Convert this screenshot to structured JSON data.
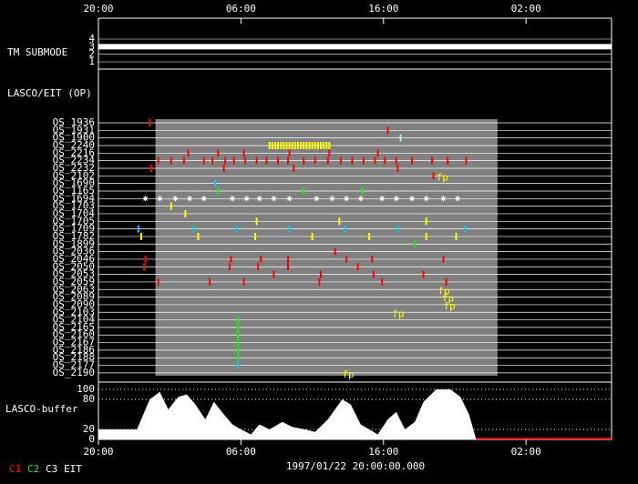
{
  "chart_data": {
    "type": "timeline",
    "xlim": [
      0,
      36
    ],
    "xticks": [
      {
        "value": 0,
        "label": "20:00"
      },
      {
        "value": 10,
        "label": "06:00"
      },
      {
        "value": 20,
        "label": "16:00"
      },
      {
        "value": 30,
        "label": "02:00"
      }
    ],
    "submode": {
      "label": "TM SUBMODE",
      "yticks": [
        4,
        3,
        2,
        1
      ],
      "value": 3,
      "color": "#ffffff"
    },
    "ops_label": "LASCO/EIT (OP)",
    "highlight_range": [
      4,
      28
    ],
    "rows": [
      {
        "name": "OS_1936",
        "color": "#ff0000",
        "times": [
          3.6
        ]
      },
      {
        "name": "OS_1931",
        "color": "#ff0000",
        "times": [
          20.3
        ]
      },
      {
        "name": "OS_1900",
        "color": "#aaeeff",
        "times": [
          21.2
        ]
      },
      {
        "name": "OS_2240",
        "color": "#ffff00",
        "times": [
          12.0,
          12.2,
          12.4,
          12.6,
          12.8,
          13.0,
          13.2,
          13.4,
          13.6,
          13.8,
          14.0,
          14.2,
          14.4,
          14.6,
          14.8,
          15.0,
          15.2,
          15.4,
          15.6,
          15.8,
          16.0,
          16.2
        ]
      },
      {
        "name": "OS_2216",
        "color": "#ff0000",
        "times": [
          6.3,
          8.4,
          10.2,
          13.4,
          16.2,
          19.6
        ]
      },
      {
        "name": "OS_2234",
        "color": "#ff0000",
        "times": [
          4.2,
          5.1,
          6.0,
          7.4,
          8.0,
          8.9,
          9.5,
          10.3,
          11.1,
          11.8,
          12.6,
          13.3,
          14.4,
          15.2,
          16.1,
          17.0,
          17.8,
          18.6,
          19.4,
          20.1,
          20.9,
          22.0,
          23.4,
          24.5,
          25.8
        ]
      },
      {
        "name": "OS_2232",
        "color": "#ff0000",
        "times": [
          3.7,
          8.8,
          13.7,
          21.0
        ]
      },
      {
        "name": "OS_2102",
        "color": "#ff0000",
        "times": [
          23.5
        ],
        "labels": [
          {
            "text": "fp",
            "x": 23.7
          }
        ]
      },
      {
        "name": "OS_1690",
        "color": "#00ccff",
        "times": [
          8.2
        ]
      },
      {
        "name": "OS_1165",
        "color": "#00ff00",
        "times": [
          8.4,
          14.4,
          18.5
        ]
      },
      {
        "name": "OS_1694",
        "color": "#ffffff",
        "marker": "asterisk",
        "times": [
          3.3,
          4.3,
          5.4,
          6.4,
          7.4,
          9.4,
          10.4,
          11.3,
          12.3,
          13.4,
          15.3,
          16.4,
          17.4,
          18.4,
          19.9,
          20.9,
          22.0,
          23.0,
          24.2,
          25.2
        ]
      },
      {
        "name": "OS_1703",
        "color": "#ffff00",
        "times": [
          5.1
        ]
      },
      {
        "name": "OS_1704",
        "color": "#ffff00",
        "times": [
          6.1
        ]
      },
      {
        "name": "OS_1705",
        "color": "#ffff00",
        "times": [
          11.1,
          16.9,
          23.0
        ]
      },
      {
        "name": "OS_1709",
        "color": "#00ccff",
        "times": [
          2.8,
          6.7,
          9.7,
          13.4,
          17.3,
          21.0,
          25.7
        ]
      },
      {
        "name": "OS_1782",
        "color": "#ffff00",
        "times": [
          3.0,
          7.0,
          11.0,
          15.0,
          19.0,
          23.0,
          25.1
        ]
      },
      {
        "name": "OS_1899",
        "color": "#00ff00",
        "times": [
          22.2
        ]
      },
      {
        "name": "OS_2036",
        "color": "#ff0000",
        "times": [
          16.6
        ]
      },
      {
        "name": "OS_2046",
        "color": "#ff0000",
        "times": [
          3.3,
          9.3,
          11.4,
          13.3,
          17.4,
          19.2,
          24.2
        ]
      },
      {
        "name": "OS_2050",
        "color": "#ff0000",
        "times": [
          3.2,
          9.2,
          11.2,
          13.3,
          18.2
        ]
      },
      {
        "name": "OS_2053",
        "color": "#ff0000",
        "times": [
          12.3,
          15.6,
          19.3,
          22.8
        ]
      },
      {
        "name": "OS_2059",
        "color": "#ff0000",
        "times": [
          4.2,
          7.8,
          10.2,
          15.5,
          19.9,
          24.4
        ]
      },
      {
        "name": "OS_2063",
        "color": "#ffff00",
        "times": [],
        "labels": [
          {
            "text": "fp",
            "x": 23.8
          }
        ]
      },
      {
        "name": "OS_2089",
        "color": "#ffff00",
        "times": [],
        "labels": [
          {
            "text": "fp",
            "x": 24.1
          }
        ]
      },
      {
        "name": "OS_2090",
        "color": "#ffff00",
        "times": [],
        "labels": [
          {
            "text": "fp",
            "x": 24.2
          }
        ]
      },
      {
        "name": "OS_2103",
        "color": "#ffff00",
        "times": [],
        "labels": [
          {
            "text": "fp",
            "x": 20.6
          }
        ]
      },
      {
        "name": "OS_2104",
        "color": "#00ff00",
        "times": [
          9.8
        ]
      },
      {
        "name": "OS_2165",
        "color": "#00ff00",
        "times": [
          9.8
        ]
      },
      {
        "name": "OS_2160",
        "color": "#00ff00",
        "times": [
          9.8
        ]
      },
      {
        "name": "OS_2167",
        "color": "#00ff00",
        "times": [
          9.8
        ]
      },
      {
        "name": "OS_2186",
        "color": "#00ff00",
        "times": [
          9.8
        ]
      },
      {
        "name": "OS_2188",
        "color": "#00ff00",
        "times": [
          9.8
        ]
      },
      {
        "name": "OS_2177",
        "color": "#00ccff",
        "times": [
          9.8
        ]
      },
      {
        "name": "OS_2190",
        "color": "#ffff00",
        "times": [],
        "labels": [
          {
            "text": "fp",
            "x": 17.1
          }
        ]
      }
    ],
    "buffer": {
      "label": "LASCO-buffer",
      "ylim": [
        0,
        100
      ],
      "yticks": [
        0,
        20,
        80,
        100
      ],
      "color": "#ffffff",
      "tail_color": "#ff0000",
      "x": [
        0,
        2.7,
        3.0,
        3.6,
        4.3,
        4.9,
        5.6,
        6.2,
        6.8,
        7.5,
        8.1,
        8.8,
        9.4,
        10.0,
        10.7,
        11.3,
        12.0,
        12.9,
        13.6,
        14.5,
        15.2,
        16.1,
        17.1,
        17.7,
        18.4,
        19.0,
        19.6,
        20.3,
        20.9,
        21.5,
        22.2,
        22.8,
        23.7,
        24.7,
        25.4,
        26.0,
        26.5
      ],
      "values": [
        20,
        20,
        40,
        80,
        95,
        60,
        85,
        90,
        70,
        40,
        75,
        50,
        30,
        20,
        10,
        30,
        20,
        35,
        25,
        20,
        15,
        40,
        80,
        70,
        30,
        20,
        10,
        40,
        55,
        20,
        35,
        75,
        100,
        100,
        85,
        50,
        0
      ]
    },
    "date_label": "1997/01/22 20:00:00.000",
    "legend": [
      {
        "name": "C1",
        "color": "#ff0000"
      },
      {
        "name": "C2",
        "color": "#00ff00"
      },
      {
        "name": "C3",
        "color": "#ffffff"
      },
      {
        "name": "EIT",
        "color": "#ffffff"
      }
    ]
  }
}
